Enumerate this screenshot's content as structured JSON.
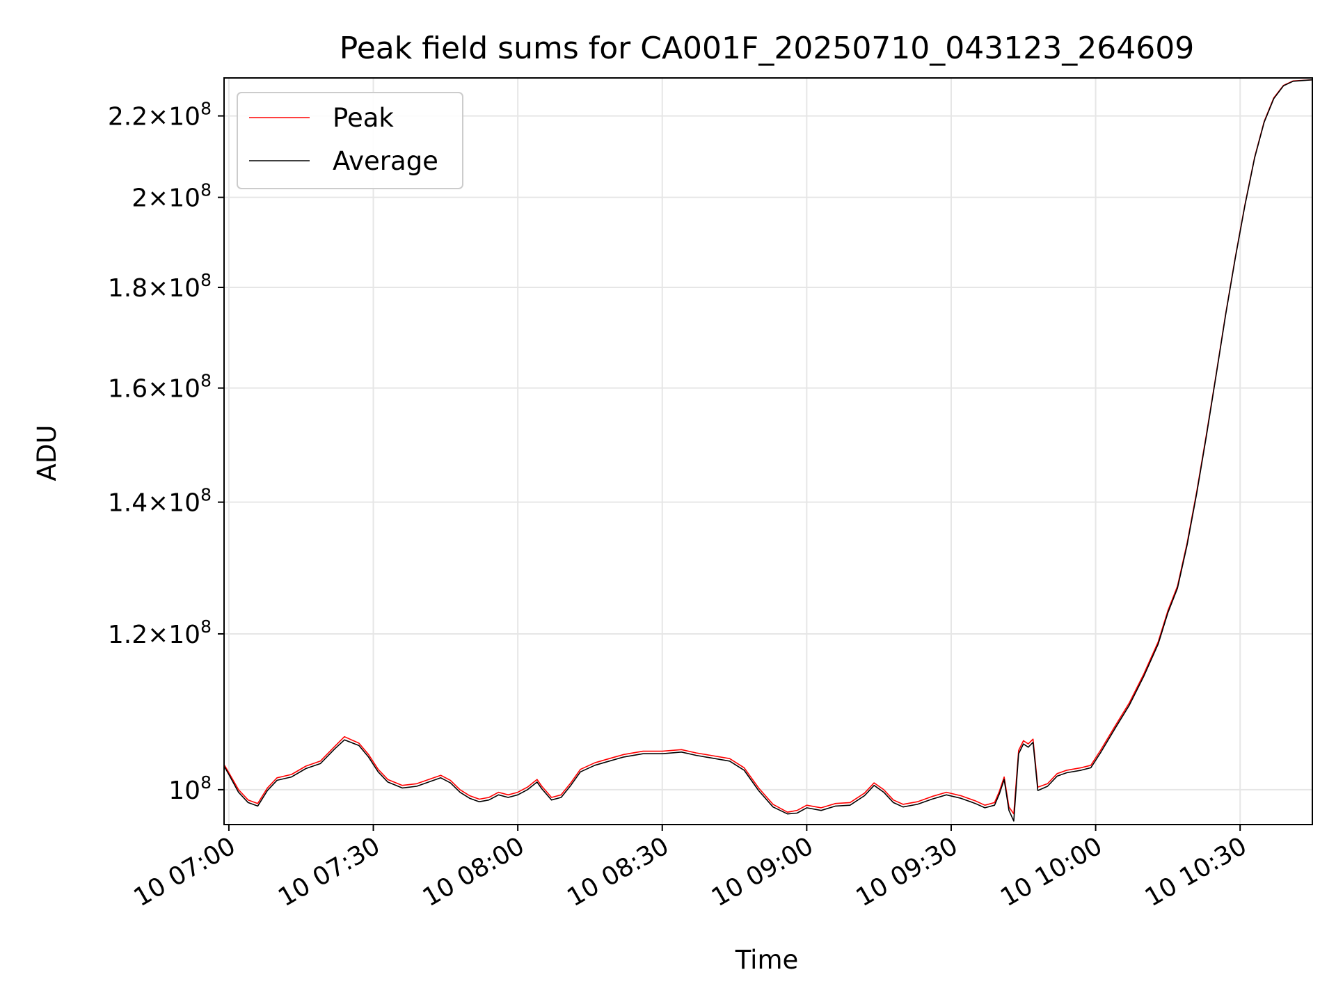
{
  "chart_data": {
    "type": "line",
    "title": "Peak field sums for CA001F_20250710_043123_264609",
    "xlabel": "Time",
    "ylabel": "ADU",
    "y_scale": "log",
    "grid": true,
    "legend_position": "upper left",
    "x_range": [
      "2025-07-10 06:59",
      "2025-07-10 10:45"
    ],
    "y_range": [
      96000000,
      230000000
    ],
    "x_ticks": [
      {
        "time": "2025-07-10 07:00",
        "label": "10 07:00"
      },
      {
        "time": "2025-07-10 07:30",
        "label": "10 07:30"
      },
      {
        "time": "2025-07-10 08:00",
        "label": "10 08:00"
      },
      {
        "time": "2025-07-10 08:30",
        "label": "10 08:30"
      },
      {
        "time": "2025-07-10 09:00",
        "label": "10 09:00"
      },
      {
        "time": "2025-07-10 09:30",
        "label": "10 09:30"
      },
      {
        "time": "2025-07-10 10:00",
        "label": "10 10:00"
      },
      {
        "time": "2025-07-10 10:30",
        "label": "10 10:30"
      }
    ],
    "y_ticks": [
      {
        "value": 100000000,
        "mantissa": "",
        "exponent": "8"
      },
      {
        "value": 120000000,
        "mantissa": "1.2",
        "exponent": "8"
      },
      {
        "value": 140000000,
        "mantissa": "1.4",
        "exponent": "8"
      },
      {
        "value": 160000000,
        "mantissa": "1.6",
        "exponent": "8"
      },
      {
        "value": 180000000,
        "mantissa": "1.8",
        "exponent": "8"
      },
      {
        "value": 200000000,
        "mantissa": "2",
        "exponent": "8"
      },
      {
        "value": 220000000,
        "mantissa": "2.2",
        "exponent": "8"
      }
    ],
    "series": [
      {
        "name": "Peak",
        "color": "#ff0000",
        "points": [
          [
            "2025-07-10 06:59",
            103000000
          ],
          [
            "2025-07-10 07:00",
            102000000
          ],
          [
            "2025-07-10 07:02",
            100000000
          ],
          [
            "2025-07-10 07:04",
            98800000
          ],
          [
            "2025-07-10 07:06",
            98400000
          ],
          [
            "2025-07-10 07:08",
            100200000
          ],
          [
            "2025-07-10 07:10",
            101400000
          ],
          [
            "2025-07-10 07:13",
            101800000
          ],
          [
            "2025-07-10 07:16",
            102800000
          ],
          [
            "2025-07-10 07:19",
            103400000
          ],
          [
            "2025-07-10 07:22",
            105200000
          ],
          [
            "2025-07-10 07:24",
            106400000
          ],
          [
            "2025-07-10 07:27",
            105600000
          ],
          [
            "2025-07-10 07:29",
            104200000
          ],
          [
            "2025-07-10 07:31",
            102400000
          ],
          [
            "2025-07-10 07:33",
            101200000
          ],
          [
            "2025-07-10 07:36",
            100500000
          ],
          [
            "2025-07-10 07:39",
            100700000
          ],
          [
            "2025-07-10 07:42",
            101300000
          ],
          [
            "2025-07-10 07:44",
            101700000
          ],
          [
            "2025-07-10 07:46",
            101100000
          ],
          [
            "2025-07-10 07:48",
            100000000
          ],
          [
            "2025-07-10 07:50",
            99300000
          ],
          [
            "2025-07-10 07:52",
            98900000
          ],
          [
            "2025-07-10 07:54",
            99100000
          ],
          [
            "2025-07-10 07:56",
            99700000
          ],
          [
            "2025-07-10 07:58",
            99400000
          ],
          [
            "2025-07-10 08:00",
            99700000
          ],
          [
            "2025-07-10 08:02",
            100300000
          ],
          [
            "2025-07-10 08:04",
            101200000
          ],
          [
            "2025-07-10 08:05",
            100400000
          ],
          [
            "2025-07-10 08:07",
            99100000
          ],
          [
            "2025-07-10 08:09",
            99400000
          ],
          [
            "2025-07-10 08:11",
            100800000
          ],
          [
            "2025-07-10 08:13",
            102400000
          ],
          [
            "2025-07-10 08:16",
            103200000
          ],
          [
            "2025-07-10 08:19",
            103700000
          ],
          [
            "2025-07-10 08:22",
            104200000
          ],
          [
            "2025-07-10 08:26",
            104600000
          ],
          [
            "2025-07-10 08:30",
            104600000
          ],
          [
            "2025-07-10 08:34",
            104800000
          ],
          [
            "2025-07-10 08:37",
            104400000
          ],
          [
            "2025-07-10 08:40",
            104100000
          ],
          [
            "2025-07-10 08:44",
            103700000
          ],
          [
            "2025-07-10 08:47",
            102600000
          ],
          [
            "2025-07-10 08:50",
            100200000
          ],
          [
            "2025-07-10 08:53",
            98300000
          ],
          [
            "2025-07-10 08:56",
            97400000
          ],
          [
            "2025-07-10 08:58",
            97600000
          ],
          [
            "2025-07-10 09:00",
            98200000
          ],
          [
            "2025-07-10 09:03",
            97900000
          ],
          [
            "2025-07-10 09:06",
            98400000
          ],
          [
            "2025-07-10 09:09",
            98500000
          ],
          [
            "2025-07-10 09:12",
            99600000
          ],
          [
            "2025-07-10 09:14",
            100800000
          ],
          [
            "2025-07-10 09:16",
            100000000
          ],
          [
            "2025-07-10 09:18",
            98800000
          ],
          [
            "2025-07-10 09:20",
            98300000
          ],
          [
            "2025-07-10 09:23",
            98600000
          ],
          [
            "2025-07-10 09:26",
            99200000
          ],
          [
            "2025-07-10 09:29",
            99700000
          ],
          [
            "2025-07-10 09:32",
            99300000
          ],
          [
            "2025-07-10 09:35",
            98700000
          ],
          [
            "2025-07-10 09:37",
            98200000
          ],
          [
            "2025-07-10 09:39",
            98500000
          ],
          [
            "2025-07-10 09:40",
            99800000
          ],
          [
            "2025-07-10 09:41",
            101500000
          ],
          [
            "2025-07-10 09:42",
            98000000
          ],
          [
            "2025-07-10 09:43",
            97200000
          ],
          [
            "2025-07-10 09:44",
            104700000
          ],
          [
            "2025-07-10 09:45",
            105900000
          ],
          [
            "2025-07-10 09:46",
            105500000
          ],
          [
            "2025-07-10 09:47",
            106100000
          ],
          [
            "2025-07-10 09:48",
            100300000
          ],
          [
            "2025-07-10 09:50",
            100700000
          ],
          [
            "2025-07-10 09:52",
            101900000
          ],
          [
            "2025-07-10 09:54",
            102300000
          ],
          [
            "2025-07-10 09:57",
            102600000
          ],
          [
            "2025-07-10 09:59",
            102900000
          ],
          [
            "2025-07-10 10:01",
            104700000
          ],
          [
            "2025-07-10 10:04",
            107700000
          ],
          [
            "2025-07-10 10:07",
            110700000
          ],
          [
            "2025-07-10 10:10",
            114500000
          ],
          [
            "2025-07-10 10:13",
            118900000
          ],
          [
            "2025-07-10 10:15",
            123300000
          ],
          [
            "2025-07-10 10:17",
            126900000
          ],
          [
            "2025-07-10 10:19",
            133500000
          ],
          [
            "2025-07-10 10:21",
            141800000
          ],
          [
            "2025-07-10 10:23",
            151600000
          ],
          [
            "2025-07-10 10:25",
            162500000
          ],
          [
            "2025-07-10 10:27",
            174500000
          ],
          [
            "2025-07-10 10:29",
            186500000
          ],
          [
            "2025-07-10 10:31",
            198300000
          ],
          [
            "2025-07-10 10:33",
            209600000
          ],
          [
            "2025-07-10 10:35",
            218600000
          ],
          [
            "2025-07-10 10:37",
            224700000
          ],
          [
            "2025-07-10 10:39",
            228000000
          ],
          [
            "2025-07-10 10:41",
            229200000
          ],
          [
            "2025-07-10 10:45",
            229500000
          ]
        ]
      },
      {
        "name": "Average",
        "color": "#000000",
        "points": [
          [
            "2025-07-10 06:59",
            102800000
          ],
          [
            "2025-07-10 07:00",
            101800000
          ],
          [
            "2025-07-10 07:02",
            99700000
          ],
          [
            "2025-07-10 07:04",
            98500000
          ],
          [
            "2025-07-10 07:06",
            98100000
          ],
          [
            "2025-07-10 07:08",
            99900000
          ],
          [
            "2025-07-10 07:10",
            101100000
          ],
          [
            "2025-07-10 07:13",
            101500000
          ],
          [
            "2025-07-10 07:16",
            102500000
          ],
          [
            "2025-07-10 07:19",
            103100000
          ],
          [
            "2025-07-10 07:22",
            104900000
          ],
          [
            "2025-07-10 07:24",
            106000000
          ],
          [
            "2025-07-10 07:27",
            105300000
          ],
          [
            "2025-07-10 07:29",
            103900000
          ],
          [
            "2025-07-10 07:31",
            102100000
          ],
          [
            "2025-07-10 07:33",
            100900000
          ],
          [
            "2025-07-10 07:36",
            100200000
          ],
          [
            "2025-07-10 07:39",
            100400000
          ],
          [
            "2025-07-10 07:42",
            101000000
          ],
          [
            "2025-07-10 07:44",
            101400000
          ],
          [
            "2025-07-10 07:46",
            100800000
          ],
          [
            "2025-07-10 07:48",
            99700000
          ],
          [
            "2025-07-10 07:50",
            99000000
          ],
          [
            "2025-07-10 07:52",
            98600000
          ],
          [
            "2025-07-10 07:54",
            98800000
          ],
          [
            "2025-07-10 07:56",
            99400000
          ],
          [
            "2025-07-10 07:58",
            99100000
          ],
          [
            "2025-07-10 08:00",
            99400000
          ],
          [
            "2025-07-10 08:02",
            100000000
          ],
          [
            "2025-07-10 08:04",
            100900000
          ],
          [
            "2025-07-10 08:05",
            100100000
          ],
          [
            "2025-07-10 08:07",
            98800000
          ],
          [
            "2025-07-10 08:09",
            99100000
          ],
          [
            "2025-07-10 08:11",
            100500000
          ],
          [
            "2025-07-10 08:13",
            102100000
          ],
          [
            "2025-07-10 08:16",
            102900000
          ],
          [
            "2025-07-10 08:19",
            103400000
          ],
          [
            "2025-07-10 08:22",
            103900000
          ],
          [
            "2025-07-10 08:26",
            104300000
          ],
          [
            "2025-07-10 08:30",
            104300000
          ],
          [
            "2025-07-10 08:34",
            104500000
          ],
          [
            "2025-07-10 08:37",
            104100000
          ],
          [
            "2025-07-10 08:40",
            103800000
          ],
          [
            "2025-07-10 08:44",
            103400000
          ],
          [
            "2025-07-10 08:47",
            102300000
          ],
          [
            "2025-07-10 08:50",
            99900000
          ],
          [
            "2025-07-10 08:53",
            98000000
          ],
          [
            "2025-07-10 08:56",
            97200000
          ],
          [
            "2025-07-10 08:58",
            97300000
          ],
          [
            "2025-07-10 09:00",
            97900000
          ],
          [
            "2025-07-10 09:03",
            97600000
          ],
          [
            "2025-07-10 09:06",
            98100000
          ],
          [
            "2025-07-10 09:09",
            98200000
          ],
          [
            "2025-07-10 09:12",
            99300000
          ],
          [
            "2025-07-10 09:14",
            100500000
          ],
          [
            "2025-07-10 09:16",
            99700000
          ],
          [
            "2025-07-10 09:18",
            98500000
          ],
          [
            "2025-07-10 09:20",
            98000000
          ],
          [
            "2025-07-10 09:23",
            98300000
          ],
          [
            "2025-07-10 09:26",
            98900000
          ],
          [
            "2025-07-10 09:29",
            99400000
          ],
          [
            "2025-07-10 09:32",
            99000000
          ],
          [
            "2025-07-10 09:35",
            98400000
          ],
          [
            "2025-07-10 09:37",
            97900000
          ],
          [
            "2025-07-10 09:39",
            98200000
          ],
          [
            "2025-07-10 09:40",
            99500000
          ],
          [
            "2025-07-10 09:41",
            101200000
          ],
          [
            "2025-07-10 09:42",
            97600000
          ],
          [
            "2025-07-10 09:43",
            96400000
          ],
          [
            "2025-07-10 09:44",
            104300000
          ],
          [
            "2025-07-10 09:45",
            105500000
          ],
          [
            "2025-07-10 09:46",
            105100000
          ],
          [
            "2025-07-10 09:47",
            105700000
          ],
          [
            "2025-07-10 09:48",
            99900000
          ],
          [
            "2025-07-10 09:50",
            100400000
          ],
          [
            "2025-07-10 09:52",
            101600000
          ],
          [
            "2025-07-10 09:54",
            102000000
          ],
          [
            "2025-07-10 09:57",
            102300000
          ],
          [
            "2025-07-10 09:59",
            102600000
          ],
          [
            "2025-07-10 10:01",
            104400000
          ],
          [
            "2025-07-10 10:04",
            107400000
          ],
          [
            "2025-07-10 10:07",
            110400000
          ],
          [
            "2025-07-10 10:10",
            114200000
          ],
          [
            "2025-07-10 10:13",
            118600000
          ],
          [
            "2025-07-10 10:15",
            123000000
          ],
          [
            "2025-07-10 10:17",
            126600000
          ],
          [
            "2025-07-10 10:19",
            133200000
          ],
          [
            "2025-07-10 10:21",
            141500000
          ],
          [
            "2025-07-10 10:23",
            151300000
          ],
          [
            "2025-07-10 10:25",
            162300000
          ],
          [
            "2025-07-10 10:27",
            174300000
          ],
          [
            "2025-07-10 10:29",
            186300000
          ],
          [
            "2025-07-10 10:31",
            198100000
          ],
          [
            "2025-07-10 10:33",
            209400000
          ],
          [
            "2025-07-10 10:35",
            218400000
          ],
          [
            "2025-07-10 10:37",
            224500000
          ],
          [
            "2025-07-10 10:39",
            227900000
          ],
          [
            "2025-07-10 10:41",
            229100000
          ],
          [
            "2025-07-10 10:45",
            229500000
          ]
        ]
      }
    ]
  }
}
